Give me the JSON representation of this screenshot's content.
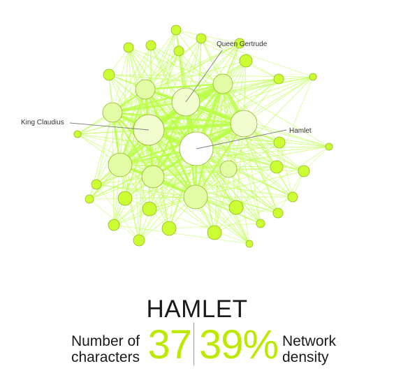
{
  "graph": {
    "labels": {
      "queen_gertrude": "Queen Gertrude",
      "king_claudius": "King Claudius",
      "hamlet": "Hamlet"
    },
    "colors": {
      "node_fill": "#ccff33",
      "node_stroke": "#93b622",
      "major_node_fill": "#f1fccf",
      "hub_fill": "#ffffff",
      "edge": "#b9ff45",
      "leader_line": "#7d7d7d"
    }
  },
  "footer": {
    "title": "HAMLET",
    "characters_label_line1": "Number of",
    "characters_label_line2": "characters",
    "characters_value": "37",
    "density_value": "39%",
    "density_label_line1": "Network",
    "density_label_line2": "density"
  },
  "accent_color": "#bde900"
}
